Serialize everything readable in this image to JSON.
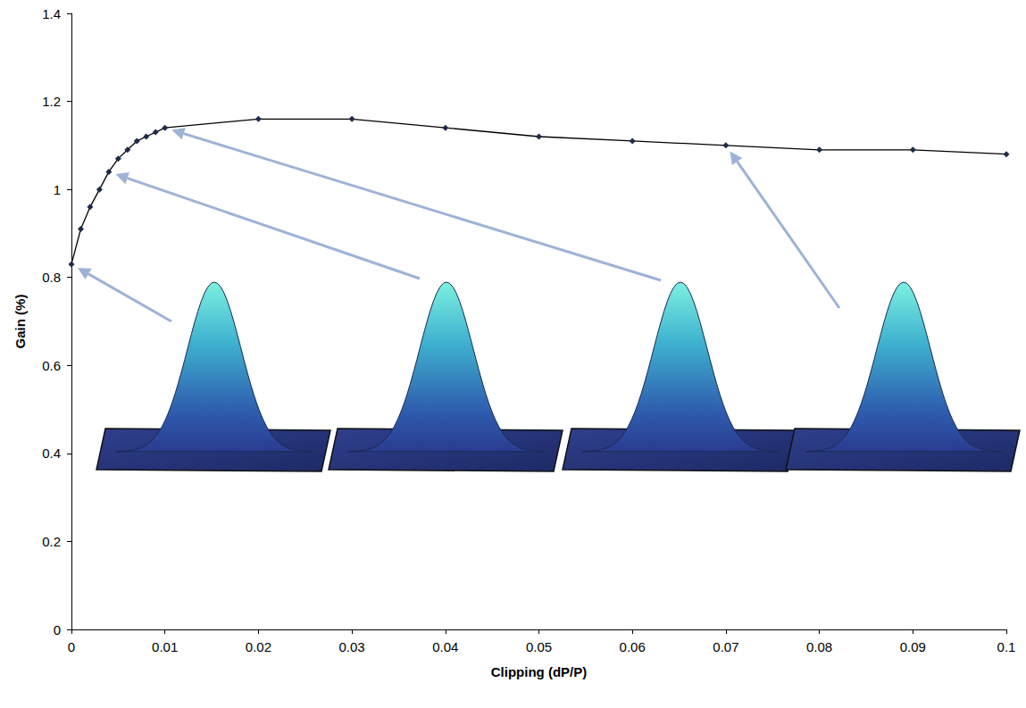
{
  "chart_data": {
    "type": "line",
    "x_label": "Clipping (dP/P)",
    "y_label": "Gain (%)",
    "x": [
      0,
      0.001,
      0.002,
      0.003,
      0.004,
      0.005,
      0.006,
      0.007,
      0.008,
      0.009,
      0.01,
      0.02,
      0.03,
      0.04,
      0.05,
      0.06,
      0.07,
      0.08,
      0.09,
      0.1
    ],
    "values": [
      0.83,
      0.91,
      0.96,
      1.0,
      1.04,
      1.07,
      1.09,
      1.11,
      1.12,
      1.13,
      1.14,
      1.16,
      1.16,
      1.14,
      1.12,
      1.11,
      1.1,
      1.09,
      1.09,
      1.08
    ],
    "color": "#000000",
    "marker": "diamond",
    "xlim": [
      0,
      0.1
    ],
    "xticks": [
      0,
      0.01,
      0.02,
      0.03,
      0.04,
      0.05,
      0.06,
      0.07,
      0.08,
      0.09,
      0.1
    ],
    "ylim": [
      0,
      1.4
    ],
    "yticks": [
      0,
      0.2,
      0.4,
      0.6,
      0.8,
      1,
      1.2,
      1.4
    ],
    "grid": false
  }
}
